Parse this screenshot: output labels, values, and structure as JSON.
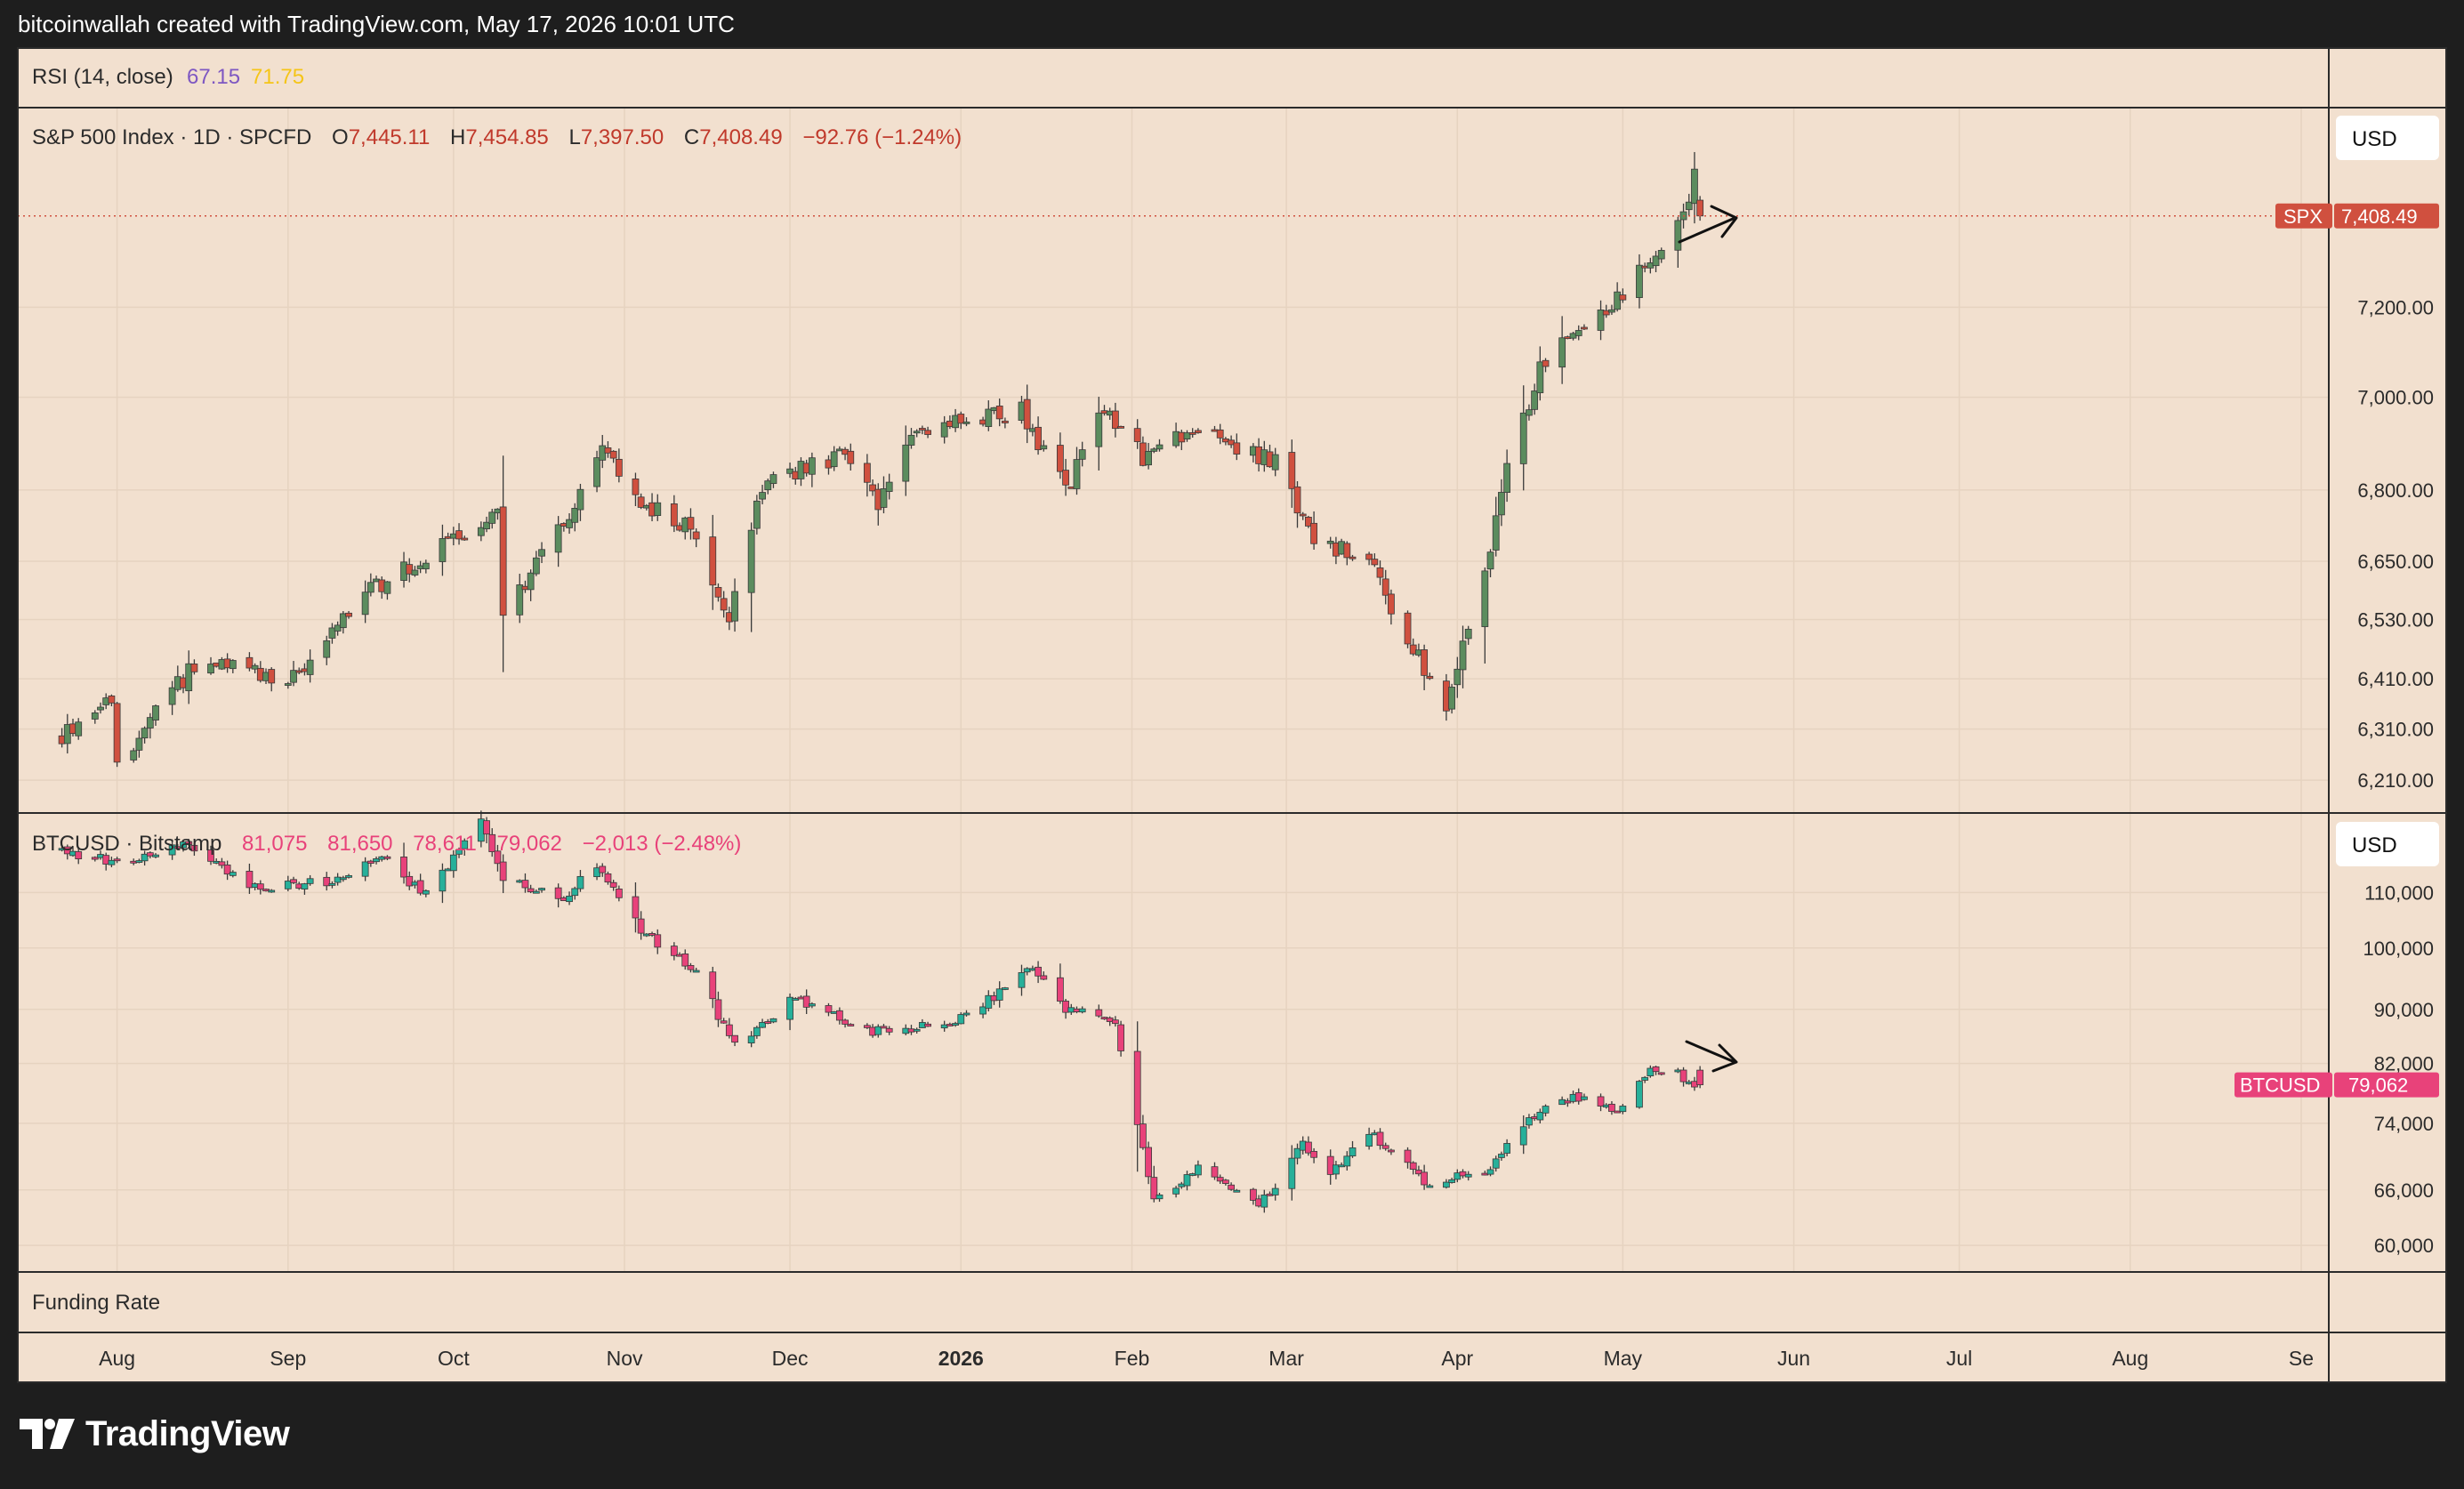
{
  "header": {
    "attribution": "bitcoinwallah created with TradingView.com, May 17, 2026 10:01 UTC"
  },
  "footer": {
    "brand": "TradingView"
  },
  "colors": {
    "background": "#f2e0cf",
    "up_spx": "#5b8c5e",
    "down_spx": "#d0503f",
    "up_btc": "#27b09a",
    "down_btc": "#e8427a",
    "rsi_value1": "#7e57c2",
    "rsi_value2": "#f5c518",
    "grid": "#e6d3c0",
    "border": "#2b2b2b",
    "spx_tag": "#d0503f",
    "btc_tag": "#e8427a"
  },
  "panes": {
    "rsi": {
      "label": "RSI (14, close)",
      "value1": "67.15",
      "value2": "71.75"
    },
    "spx": {
      "title": "S&P 500 Index · 1D · SPCFD",
      "o_label": "O",
      "o_value": "7,445.11",
      "h_label": "H",
      "h_value": "7,454.85",
      "l_label": "L",
      "l_value": "7,397.50",
      "c_label": "C",
      "c_value": "7,408.49",
      "change": "−92.76 (−1.24%)",
      "currency": "USD",
      "last_symbol": "SPX",
      "last_price": "7,408.49"
    },
    "btc": {
      "title": "BTCUSD · Bitstamp",
      "o_value": "81,075",
      "h_value": "81,650",
      "l_value": "78,611",
      "c_value": "79,062",
      "change": "−2,013 (−2.48%)",
      "currency": "USD",
      "last_symbol": "BTCUSD",
      "last_price": "79,062"
    },
    "funding": {
      "label": "Funding Rate"
    }
  },
  "chart_data": [
    {
      "type": "candlestick",
      "name": "S&P 500 Index",
      "scale": "log",
      "ylim": [
        6150,
        7560
      ],
      "y_ticks": [
        6210,
        6310,
        6410,
        6530,
        6650,
        6800,
        7000,
        7200
      ],
      "y_tick_labels": [
        "6,210.00",
        "6,310.00",
        "6,410.00",
        "6,530.00",
        "6,650.00",
        "6,800.00",
        "7,000.00",
        "7,200.00"
      ],
      "anchors": [
        [
          "2025-07-22",
          6300
        ],
        [
          "2025-07-31",
          6370
        ],
        [
          "2025-08-01",
          6240
        ],
        [
          "2025-08-15",
          6440
        ],
        [
          "2025-09-02",
          6410
        ],
        [
          "2025-09-15",
          6580
        ],
        [
          "2025-10-09",
          6750
        ],
        [
          "2025-10-10",
          6540
        ],
        [
          "2025-10-20",
          6710
        ],
        [
          "2025-10-28",
          6880
        ],
        [
          "2025-11-04",
          6770
        ],
        [
          "2025-11-13",
          6720
        ],
        [
          "2025-11-20",
          6540
        ],
        [
          "2025-11-26",
          6810
        ],
        [
          "2025-12-11",
          6880
        ],
        [
          "2025-12-17",
          6760
        ],
        [
          "2025-12-24",
          6930
        ],
        [
          "2026-01-12",
          6970
        ],
        [
          "2026-01-20",
          6800
        ],
        [
          "2026-01-27",
          6980
        ],
        [
          "2026-02-03",
          6870
        ],
        [
          "2026-02-12",
          6930
        ],
        [
          "2026-02-27",
          6860
        ],
        [
          "2026-03-06",
          6690
        ],
        [
          "2026-03-16",
          6660
        ],
        [
          "2026-03-20",
          6550
        ],
        [
          "2026-03-30",
          6360
        ],
        [
          "2026-04-06",
          6630
        ],
        [
          "2026-04-09",
          6800
        ],
        [
          "2026-04-16",
          7060
        ],
        [
          "2026-04-22",
          7140
        ],
        [
          "2026-05-01",
          7230
        ],
        [
          "2026-05-07",
          7320
        ],
        [
          "2026-05-13",
          7450
        ],
        [
          "2026-05-14",
          7501
        ],
        [
          "2026-05-15",
          7408.49
        ]
      ],
      "last_candle": {
        "date": "2026-05-15",
        "open": 7445.11,
        "high": 7454.85,
        "low": 7397.5,
        "close": 7408.49
      },
      "last_price": 7408.49
    },
    {
      "type": "candlestick",
      "name": "BTCUSD",
      "scale": "log",
      "ylim": [
        57500,
        124000
      ],
      "y_ticks": [
        60000,
        66000,
        74000,
        82000,
        90000,
        100000,
        110000
      ],
      "y_tick_labels": [
        "60,000",
        "66,000",
        "74,000",
        "82,000",
        "90,000",
        "100,000",
        "110,000"
      ],
      "anchors": [
        [
          "2025-07-22",
          118500
        ],
        [
          "2025-08-01",
          115500
        ],
        [
          "2025-08-14",
          119500
        ],
        [
          "2025-08-25",
          111000
        ],
        [
          "2025-09-08",
          112000
        ],
        [
          "2025-09-18",
          116500
        ],
        [
          "2025-09-26",
          109500
        ],
        [
          "2025-10-06",
          124000
        ],
        [
          "2025-10-10",
          113000
        ],
        [
          "2025-10-20",
          108500
        ],
        [
          "2025-10-27",
          115000
        ],
        [
          "2025-11-04",
          103000
        ],
        [
          "2025-11-14",
          96000
        ],
        [
          "2025-11-21",
          84500
        ],
        [
          "2025-12-02",
          92000
        ],
        [
          "2025-12-15",
          86500
        ],
        [
          "2025-12-31",
          88000
        ],
        [
          "2026-01-14",
          96500
        ],
        [
          "2026-01-20",
          90000
        ],
        [
          "2026-01-29",
          88000
        ],
        [
          "2026-02-05",
          65000
        ],
        [
          "2026-02-13",
          68500
        ],
        [
          "2026-02-24",
          64000
        ],
        [
          "2026-03-04",
          71500
        ],
        [
          "2026-03-08",
          67000
        ],
        [
          "2026-03-16",
          73000
        ],
        [
          "2026-03-27",
          66500
        ],
        [
          "2026-04-07",
          68500
        ],
        [
          "2026-04-14",
          74500
        ],
        [
          "2026-04-22",
          77500
        ],
        [
          "2026-04-30",
          76000
        ],
        [
          "2026-05-06",
          81500
        ],
        [
          "2026-05-11",
          80500
        ],
        [
          "2026-05-15",
          79062
        ]
      ],
      "last_candle": {
        "date": "2026-05-15",
        "open": 81075,
        "high": 81650,
        "low": 78611,
        "close": 79062
      },
      "last_price": 79062
    }
  ],
  "time_axis": {
    "start": "2025-07-14",
    "end": "2026-09-06",
    "labels": [
      {
        "date": "2025-08-01",
        "label": "Aug"
      },
      {
        "date": "2025-09-01",
        "label": "Sep"
      },
      {
        "date": "2025-10-01",
        "label": "Oct"
      },
      {
        "date": "2025-11-01",
        "label": "Nov"
      },
      {
        "date": "2025-12-01",
        "label": "Dec"
      },
      {
        "date": "2026-01-01",
        "label": "2026",
        "bold": true
      },
      {
        "date": "2026-02-01",
        "label": "Feb"
      },
      {
        "date": "2026-03-01",
        "label": "Mar"
      },
      {
        "date": "2026-04-01",
        "label": "Apr"
      },
      {
        "date": "2026-05-01",
        "label": "May"
      },
      {
        "date": "2026-06-01",
        "label": "Jun"
      },
      {
        "date": "2026-07-01",
        "label": "Jul"
      },
      {
        "date": "2026-08-01",
        "label": "Aug"
      },
      {
        "date": "2026-09-01",
        "label": "Se"
      }
    ]
  }
}
